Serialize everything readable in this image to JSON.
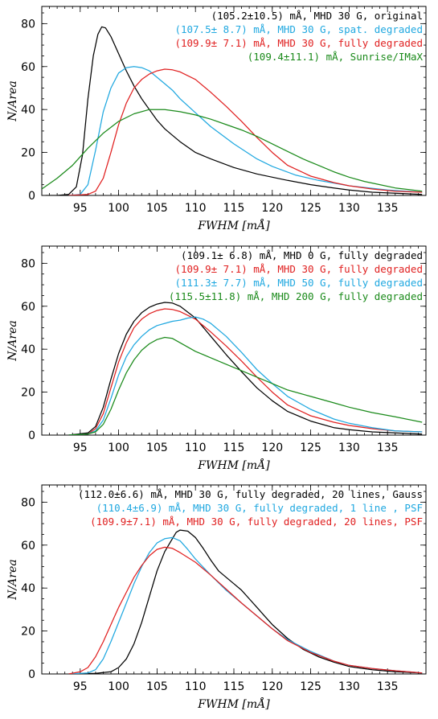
{
  "chart_data": [
    {
      "type": "line",
      "xlabel": "FWHM [mÅ]",
      "ylabel": "N/Area",
      "xlim": [
        90,
        140
      ],
      "ylim": [
        0,
        88
      ],
      "xticks": [
        95,
        100,
        105,
        110,
        115,
        120,
        125,
        130,
        135
      ],
      "yticks": [
        0,
        20,
        40,
        60,
        80
      ],
      "xtick_labels": [
        "95",
        "100",
        "105",
        "110",
        "115",
        "120",
        "125",
        "130",
        "135"
      ],
      "ytick_labels": [
        "0",
        "20",
        "40",
        "60",
        "80"
      ],
      "legend_position": "top-right",
      "series": [
        {
          "name": "(105.2±10.5) mÅ, MHD 30 G, original",
          "color": "#000000",
          "x": [
            90.5,
            92,
            93.5,
            94.5,
            95.3,
            96,
            96.7,
            97.3,
            97.8,
            98.3,
            99,
            100,
            101,
            102,
            103,
            104,
            105,
            106,
            107,
            108,
            110,
            112,
            115,
            118,
            120,
            122,
            125,
            128,
            130,
            133,
            136,
            139.5
          ],
          "y": [
            0,
            0,
            0.5,
            4,
            19,
            45,
            65,
            75,
            78.5,
            78,
            74,
            66,
            58,
            51,
            45,
            40,
            35,
            31,
            28,
            25,
            20,
            17,
            13,
            10,
            8.5,
            7,
            5,
            3.5,
            2.5,
            1.5,
            1,
            0.5
          ]
        },
        {
          "name": "(107.5± 8.7) mÅ, MHD 30 G, spat. degraded",
          "color": "#20a8e0",
          "x": [
            93.5,
            95,
            96,
            97,
            98,
            99,
            100,
            101,
            102,
            103,
            104,
            105,
            106,
            107,
            108,
            110,
            112,
            115,
            118,
            120,
            123,
            126,
            130,
            135,
            139.5
          ],
          "y": [
            0,
            0.5,
            5,
            21,
            39,
            50,
            57,
            59.5,
            60,
            59.5,
            58,
            55,
            52,
            49,
            45,
            38.5,
            32,
            24,
            17,
            13.5,
            9.5,
            7,
            4.5,
            2.5,
            1.5
          ]
        },
        {
          "name": "(109.9± 7.1) mÅ, MHD 30 G, fully degraded",
          "color": "#e02020",
          "x": [
            93.5,
            96,
            97,
            98,
            99,
            100,
            101,
            102,
            103,
            104,
            105,
            106,
            107,
            108,
            110,
            112,
            114,
            116,
            118,
            120,
            122,
            125,
            128,
            130,
            133,
            136,
            139.5
          ],
          "y": [
            0,
            0.5,
            2,
            8,
            20,
            33,
            43,
            50,
            54,
            56.5,
            58,
            58.8,
            58.5,
            57.5,
            54,
            48,
            41.5,
            34.5,
            27,
            20,
            14,
            9,
            6,
            4.5,
            3,
            2,
            1.5
          ]
        },
        {
          "name": "(109.4±11.1) mÅ, Sunrise/IMaX",
          "color": "#1a8a1a",
          "x": [
            90,
            92,
            94,
            96,
            98,
            100,
            102,
            104,
            106,
            108,
            110,
            112,
            114,
            116,
            118,
            120,
            122,
            124,
            126,
            128,
            130,
            132,
            134,
            136,
            139.5
          ],
          "y": [
            3,
            8,
            14,
            22,
            29,
            34.5,
            38,
            40,
            40,
            39,
            37.5,
            35.5,
            33,
            30.5,
            27.5,
            24,
            20.5,
            17,
            14,
            11,
            8.5,
            6.5,
            5,
            3.5,
            2
          ]
        }
      ]
    },
    {
      "type": "line",
      "xlabel": "FWHM [mÅ]",
      "ylabel": "N/Area",
      "xlim": [
        90,
        140
      ],
      "ylim": [
        0,
        88
      ],
      "xticks": [
        95,
        100,
        105,
        110,
        115,
        120,
        125,
        130,
        135
      ],
      "yticks": [
        0,
        20,
        40,
        60,
        80
      ],
      "xtick_labels": [
        "95",
        "100",
        "105",
        "110",
        "115",
        "120",
        "125",
        "130",
        "135"
      ],
      "ytick_labels": [
        "0",
        "20",
        "40",
        "60",
        "80"
      ],
      "legend_position": "top-right",
      "series": [
        {
          "name": "(109.1± 6.8) mÅ, MHD  0 G, fully degraded",
          "color": "#000000",
          "x": [
            93.5,
            96,
            97,
            98,
            99,
            100,
            101,
            102,
            103,
            104,
            105,
            106,
            107,
            108,
            110,
            112,
            114,
            116,
            118,
            120,
            122,
            125,
            128,
            130,
            133,
            136,
            139.5
          ],
          "y": [
            0,
            1,
            4,
            13,
            26,
            38,
            47,
            53,
            57,
            59.5,
            61,
            61.8,
            61.5,
            60,
            54.5,
            46,
            37.5,
            29.5,
            22,
            16,
            11,
            6.5,
            3.5,
            2.5,
            1.5,
            1,
            0.5
          ]
        },
        {
          "name": "(109.9± 7.1) mÅ, MHD  30 G, fully degraded",
          "color": "#e02020",
          "x": [
            93.5,
            96,
            97,
            98,
            99,
            100,
            101,
            102,
            103,
            104,
            105,
            106,
            107,
            108,
            110,
            112,
            114,
            116,
            118,
            120,
            122,
            125,
            128,
            130,
            133,
            136,
            139.5
          ],
          "y": [
            0,
            0.5,
            3,
            10,
            22,
            34,
            43,
            50,
            54,
            56.5,
            58,
            58.8,
            58.5,
            57.5,
            54,
            48,
            41.5,
            34.5,
            27,
            20,
            14,
            9,
            6,
            4.5,
            3,
            2,
            1.5
          ]
        },
        {
          "name": "(111.3± 7.7) mÅ, MHD  50 G, fully degraded",
          "color": "#20a8e0",
          "x": [
            93.5,
            96,
            97,
            98,
            99,
            100,
            101,
            102,
            103,
            104,
            105,
            106,
            107,
            108,
            109,
            110,
            111,
            112,
            114,
            116,
            118,
            120,
            122,
            125,
            128,
            130,
            133,
            136,
            139.5
          ],
          "y": [
            0,
            0.5,
            2,
            7,
            17,
            28,
            36.5,
            42,
            46,
            49,
            51,
            52,
            53,
            53.5,
            54.5,
            55,
            54,
            52,
            46,
            38.5,
            30.5,
            24,
            18,
            12,
            7.5,
            5.5,
            3.5,
            2,
            1.5
          ]
        },
        {
          "name": "(115.5±11.8) mÅ, MHD 200 G, fully degraded",
          "color": "#1a8a1a",
          "x": [
            93.5,
            96,
            97,
            98,
            99,
            100,
            101,
            102,
            103,
            104,
            105,
            106,
            107,
            108,
            110,
            112,
            114,
            116,
            118,
            120,
            122,
            125,
            128,
            130,
            133,
            136,
            139.5
          ],
          "y": [
            0,
            0.5,
            1.5,
            5,
            12,
            21,
            29,
            35,
            39.5,
            42.5,
            44.5,
            45.5,
            45,
            43,
            39,
            36,
            33,
            30,
            27,
            24,
            21,
            18,
            15,
            13,
            10.5,
            8.5,
            6
          ]
        }
      ]
    },
    {
      "type": "line",
      "xlabel": "FWHM [mÅ]",
      "ylabel": "N/Area",
      "xlim": [
        90,
        140
      ],
      "ylim": [
        0,
        88
      ],
      "xticks": [
        95,
        100,
        105,
        110,
        115,
        120,
        125,
        130,
        135
      ],
      "yticks": [
        0,
        20,
        40,
        60,
        80
      ],
      "xtick_labels": [
        "95",
        "100",
        "105",
        "110",
        "115",
        "120",
        "125",
        "130",
        "135"
      ],
      "ytick_labels": [
        "0",
        "20",
        "40",
        "60",
        "80"
      ],
      "legend_position": "top-right",
      "series": [
        {
          "name": "(112.0±6.6) mÅ, MHD 30 G, fully degraded, 20 lines, Gauss",
          "color": "#000000",
          "x": [
            93.5,
            97,
            99,
            100,
            101,
            102,
            103,
            104,
            105,
            106,
            107,
            107.5,
            108,
            109,
            110,
            111,
            112,
            113,
            114,
            115,
            116,
            117,
            118,
            119,
            120,
            122,
            124,
            126,
            128,
            130,
            133,
            136,
            139.5
          ],
          "y": [
            0,
            0.3,
            1,
            3,
            7,
            14,
            24,
            36,
            48,
            57,
            63,
            66,
            67,
            66.5,
            63.5,
            58.5,
            53,
            48,
            45,
            42,
            39,
            35,
            31,
            27,
            23,
            16.5,
            11.5,
            8,
            5.5,
            3.5,
            2,
            1,
            0.5
          ]
        },
        {
          "name": "(110.4±6.9) mÅ, MHD 30 G, fully degraded,  1 line , PSF",
          "color": "#20a8e0",
          "x": [
            93.5,
            96,
            97,
            98,
            99,
            100,
            101,
            102,
            103,
            104,
            105,
            106,
            107,
            108,
            109,
            110,
            112,
            114,
            116,
            118,
            120,
            122,
            125,
            128,
            130,
            133,
            136,
            139.5
          ],
          "y": [
            0,
            0.5,
            2,
            7,
            15,
            24,
            33,
            42,
            50,
            56.5,
            61,
            63,
            63.5,
            62,
            58,
            53.5,
            46,
            39,
            33,
            27,
            21,
            16,
            10.5,
            6,
            4,
            2.5,
            1.5,
            0.5
          ]
        },
        {
          "name": "(109.9±7.1) mÅ, MHD 30 G, fully degraded, 20 lines, PSF",
          "color": "#e02020",
          "x": [
            93.5,
            95,
            96,
            97,
            98,
            99,
            100,
            101,
            102,
            103,
            104,
            105,
            106,
            107,
            108,
            110,
            112,
            114,
            116,
            118,
            120,
            122,
            125,
            128,
            130,
            133,
            136,
            139.5
          ],
          "y": [
            0,
            1,
            3,
            8,
            15,
            23,
            31,
            38,
            45,
            50.5,
            55,
            58,
            59,
            58.5,
            56.5,
            52,
            46,
            39.5,
            33,
            27,
            21,
            15.5,
            10,
            6,
            4,
            2.5,
            1.5,
            0.5
          ]
        }
      ]
    }
  ]
}
